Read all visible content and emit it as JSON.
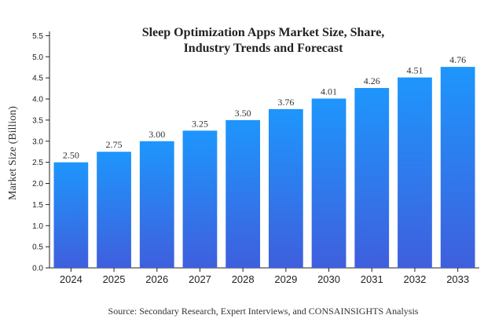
{
  "chart_data": {
    "type": "bar",
    "title_lines": [
      "Sleep Optimization Apps Market Size, Share,",
      "Industry Trends and Forecast"
    ],
    "xlabel": "",
    "ylabel": "Market Size (Billion)",
    "categories": [
      "2024",
      "2025",
      "2026",
      "2027",
      "2028",
      "2029",
      "2030",
      "2031",
      "2032",
      "2033"
    ],
    "values": [
      2.5,
      2.75,
      3.0,
      3.25,
      3.5,
      3.76,
      4.01,
      4.26,
      4.51,
      4.76
    ],
    "value_labels": [
      "2.50",
      "2.75",
      "3.00",
      "3.25",
      "3.50",
      "3.76",
      "4.01",
      "4.26",
      "4.51",
      "4.76"
    ],
    "ylim": [
      0,
      5.6
    ],
    "yticks": [
      "0.0",
      "0.5",
      "1.0",
      "1.5",
      "2.0",
      "2.5",
      "3.0",
      "3.5",
      "4.0",
      "4.5",
      "5.0",
      "5.5"
    ],
    "grid": false,
    "legend": "none",
    "colors": {
      "bar_top": "#1e96fc",
      "bar_bottom": "#3f5fdd",
      "axis": "#222222"
    }
  },
  "footer": {
    "source": "Source: Secondary Research, Expert Interviews, and CONSAINSIGHTS Analysis"
  }
}
